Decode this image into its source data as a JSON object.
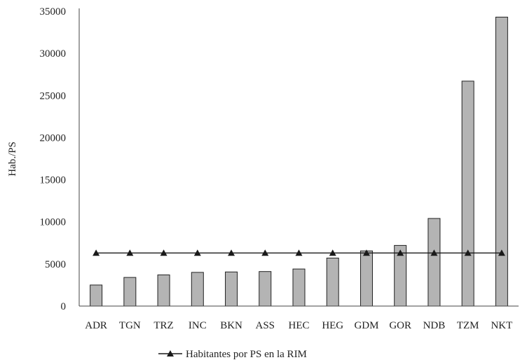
{
  "chart_data": {
    "type": "bar",
    "title": "",
    "xlabel": "",
    "ylabel": "Hab./PS",
    "ylim": [
      0,
      35000
    ],
    "yticks": [
      0,
      5000,
      10000,
      15000,
      20000,
      25000,
      30000,
      35000
    ],
    "grid": false,
    "legend_position": "bottom",
    "categories": [
      "ADR",
      "TGN",
      "TRZ",
      "INC",
      "BKN",
      "ASS",
      "HEC",
      "HEG",
      "GDM",
      "GOR",
      "NDB",
      "TZM",
      "NKT"
    ],
    "values": [
      2500,
      3400,
      3700,
      4000,
      4050,
      4100,
      4400,
      5700,
      6550,
      7200,
      10400,
      26700,
      34300
    ],
    "bar_color": "#b4b4b4",
    "line_series": {
      "name": "Habitantes por PS en la RIM",
      "values": [
        6300,
        6300,
        6300,
        6300,
        6300,
        6300,
        6300,
        6300,
        6300,
        6300,
        6300,
        6300,
        6300
      ],
      "color": "#1a1a1a",
      "marker": "triangle"
    }
  }
}
